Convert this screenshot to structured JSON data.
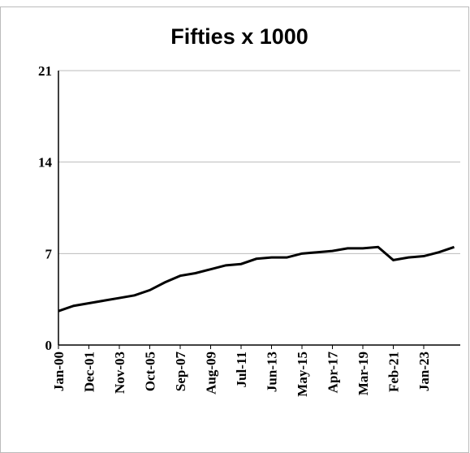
{
  "chart_data": {
    "type": "line",
    "title": "Fifties x 1000",
    "categories": [
      "Jan-00",
      null,
      "Dec-01",
      null,
      "Nov-03",
      null,
      "Oct-05",
      null,
      "Sep-07",
      null,
      "Aug-09",
      null,
      "Jul-11",
      null,
      "Jun-13",
      null,
      "May-15",
      null,
      "Apr-17",
      null,
      "Mar-19",
      null,
      "Feb-21",
      null,
      "Jan-23",
      null,
      null
    ],
    "series": [
      {
        "name": "Fifties x 1000",
        "color": "#000000",
        "values": [
          2.6,
          3.0,
          3.2,
          3.4,
          3.6,
          3.8,
          4.2,
          4.8,
          5.3,
          5.5,
          5.8,
          6.1,
          6.2,
          6.6,
          6.7,
          6.7,
          7.0,
          7.1,
          7.2,
          7.4,
          7.4,
          7.5,
          6.5,
          6.7,
          6.8,
          7.1,
          7.5
        ]
      }
    ],
    "ylim": [
      0,
      21
    ],
    "yticks": [
      0,
      7,
      14,
      21
    ],
    "grid": true
  }
}
